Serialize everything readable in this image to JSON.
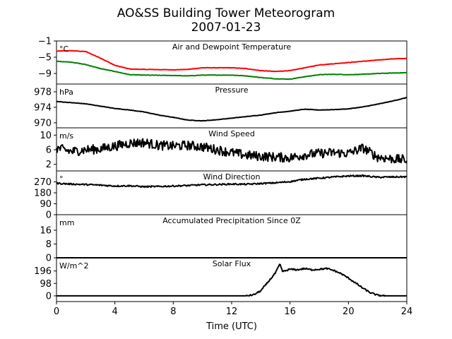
{
  "figure": {
    "title": "AO&SS Building Tower Meteorogram",
    "subtitle": "2007-01-23",
    "xlabel": "Time (UTC)"
  },
  "chart_data": {
    "type": "line",
    "x_ticks": [
      0,
      4,
      8,
      12,
      16,
      20,
      24
    ],
    "xlim": [
      0,
      24
    ],
    "grid": false,
    "panels": [
      {
        "title": "Air and Dewpoint Temperature",
        "unit": "°C",
        "ylim": [
          -11.6,
          -1
        ],
        "y_ticks": [
          -1,
          -5,
          -9
        ],
        "noise": 0.05,
        "series": [
          {
            "color": "#ff0000",
            "x": [
              0,
              1,
              2,
              3,
              4,
              5,
              6,
              8,
              9,
              10,
              12,
              13,
              14,
              15,
              16,
              17,
              18,
              19,
              20,
              21,
              22,
              23,
              24
            ],
            "y": [
              -3.5,
              -3.4,
              -3.6,
              -5.2,
              -7.0,
              -7.9,
              -8.0,
              -8.1,
              -8.0,
              -7.6,
              -7.6,
              -7.8,
              -8.3,
              -8.5,
              -8.3,
              -7.6,
              -6.9,
              -6.6,
              -6.3,
              -6.0,
              -5.7,
              -5.4,
              -5.3
            ]
          },
          {
            "color": "#008000",
            "x": [
              0,
              1,
              2,
              3,
              4,
              5,
              6,
              8,
              9,
              10,
              12,
              13,
              14,
              15,
              16,
              17,
              18,
              19,
              20,
              21,
              22,
              23,
              24
            ],
            "y": [
              -6.0,
              -6.2,
              -6.8,
              -7.8,
              -8.5,
              -9.3,
              -9.4,
              -9.5,
              -9.6,
              -9.4,
              -9.4,
              -9.6,
              -10.0,
              -10.3,
              -10.4,
              -9.8,
              -9.3,
              -9.2,
              -9.3,
              -9.2,
              -9.0,
              -8.9,
              -8.8
            ]
          }
        ]
      },
      {
        "title": "Pressure",
        "unit": "hPa",
        "ylim": [
          968.7,
          980
        ],
        "y_ticks": [
          978,
          974,
          970
        ],
        "noise": 0.05,
        "series": [
          {
            "color": "#000000",
            "x": [
              0,
              1,
              2,
              3,
              4,
              5,
              6,
              7,
              8,
              9,
              10,
              11,
              12,
              13,
              14,
              15,
              16,
              17,
              18,
              19,
              20,
              21,
              22,
              23,
              24
            ],
            "y": [
              975.5,
              975.2,
              974.9,
              974.3,
              973.7,
              973.3,
              972.8,
              972.0,
              971.4,
              970.7,
              970.5,
              970.8,
              971.2,
              971.6,
              972.0,
              972.6,
              973.0,
              973.5,
              973.3,
              973.4,
              973.6,
              974.1,
              974.8,
              975.6,
              976.5
            ]
          }
        ]
      },
      {
        "title": "Wind Speed",
        "unit": "m/s",
        "ylim": [
          0.2,
          12
        ],
        "y_ticks": [
          10,
          6,
          2
        ],
        "noise": 1.3,
        "series": [
          {
            "color": "#000000",
            "x": [
              0,
              1,
              2,
              3,
              4,
              5,
              6,
              7,
              8,
              9,
              10,
              11,
              12,
              13,
              14,
              15,
              16,
              17,
              18,
              19,
              20,
              21,
              22,
              23,
              24
            ],
            "y": [
              6.5,
              5.5,
              6.0,
              6.2,
              7.0,
              7.8,
              8.0,
              7.2,
              7.0,
              7.2,
              6.8,
              6.0,
              5.2,
              4.5,
              4.2,
              4.0,
              3.8,
              4.6,
              5.0,
              5.2,
              5.0,
              6.5,
              4.0,
              3.5,
              3.2
            ]
          }
        ]
      },
      {
        "title": "Wind Direction",
        "unit": "°",
        "ylim": [
          0,
          360
        ],
        "y_ticks": [
          270,
          180,
          90,
          0
        ],
        "noise": 6,
        "series": [
          {
            "color": "#000000",
            "x": [
              0,
              1,
              2,
              3,
              4,
              5,
              6,
              7,
              8,
              9,
              10,
              11,
              12,
              13,
              14,
              15,
              16,
              17,
              18,
              19,
              20,
              21,
              22,
              23,
              24
            ],
            "y": [
              258,
              252,
              248,
              243,
              236,
              238,
              230,
              232,
              236,
              240,
              246,
              248,
              252,
              250,
              256,
              262,
              272,
              292,
              300,
              310,
              318,
              320,
              308,
              310,
              312
            ]
          }
        ]
      },
      {
        "title": "Accumulated Precipitation Since 0Z",
        "unit": "mm",
        "ylim": [
          0,
          25
        ],
        "y_ticks": [
          16,
          8,
          0
        ],
        "noise": 0,
        "series": [
          {
            "color": "#000000",
            "x": [
              0,
              24
            ],
            "y": [
              0,
              0
            ]
          }
        ]
      },
      {
        "title": "Solar Flux",
        "unit": "W/m^2",
        "ylim": [
          -45,
          300
        ],
        "y_ticks": [
          196,
          98,
          0
        ],
        "noise": 6,
        "series": [
          {
            "color": "#000000",
            "x": [
              0,
              13.0,
              13.5,
              14.0,
              14.5,
              15.0,
              15.3,
              15.5,
              16.0,
              16.5,
              17.0,
              17.5,
              18.0,
              18.5,
              19.0,
              19.5,
              20.0,
              20.5,
              21.0,
              21.5,
              22.0,
              22.5,
              23.0,
              24
            ],
            "y": [
              0,
              0,
              8,
              40,
              110,
              180,
              250,
              190,
              210,
              205,
              215,
              205,
              210,
              215,
              200,
              175,
              140,
              100,
              60,
              25,
              5,
              0,
              0,
              0
            ]
          }
        ]
      }
    ]
  }
}
